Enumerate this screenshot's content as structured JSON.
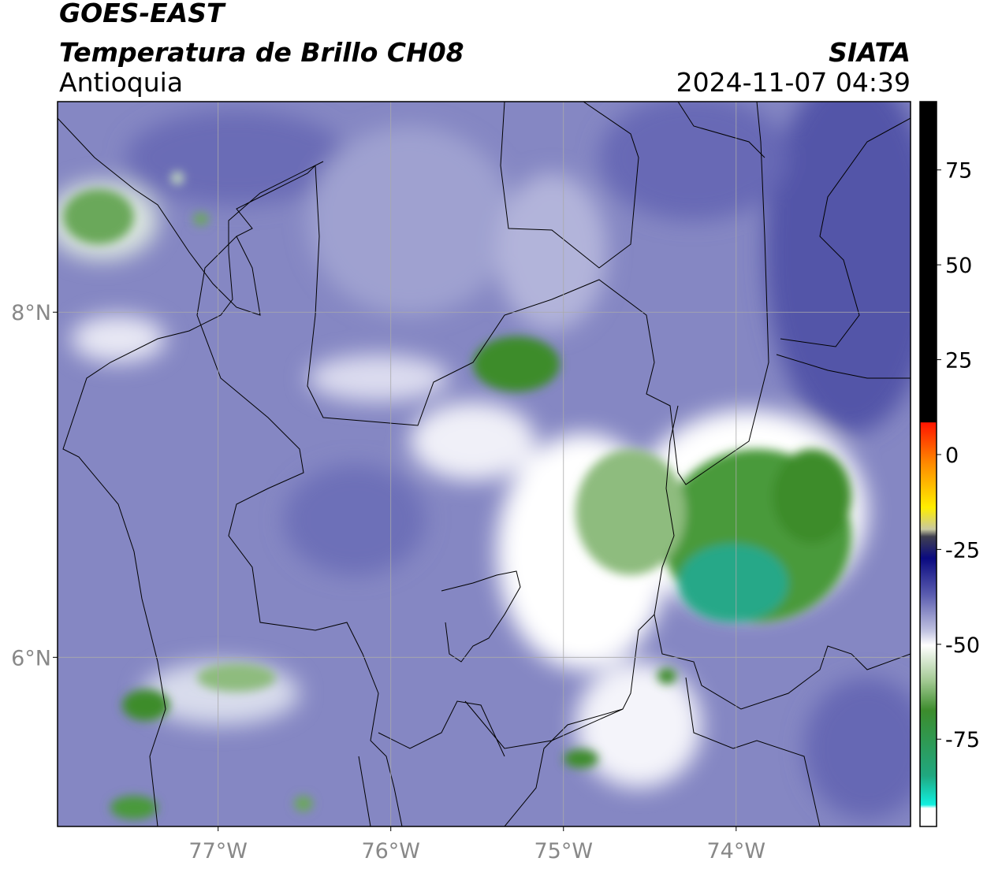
{
  "header": {
    "title": "GOES-EAST",
    "subtitle": "Temperatura de Brillo CH08",
    "region": "Antioquia",
    "source": "SIATA",
    "datetime": "2024-11-07 04:39"
  },
  "map": {
    "lonlim": [
      -77.93,
      -72.99
    ],
    "latlim": [
      5.02,
      9.22
    ],
    "lon_ticks": [
      {
        "value": -77,
        "label": "77°W"
      },
      {
        "value": -76,
        "label": "76°W"
      },
      {
        "value": -75,
        "label": "75°W"
      },
      {
        "value": -74,
        "label": "74°W"
      }
    ],
    "lat_ticks": [
      {
        "value": 8,
        "label": "8°N"
      },
      {
        "value": 6,
        "label": "6°N"
      }
    ]
  },
  "colorbar": {
    "lim": [
      -98,
      93
    ],
    "ticks": [
      75,
      50,
      25,
      0,
      -25,
      -50,
      -75
    ]
  }
}
